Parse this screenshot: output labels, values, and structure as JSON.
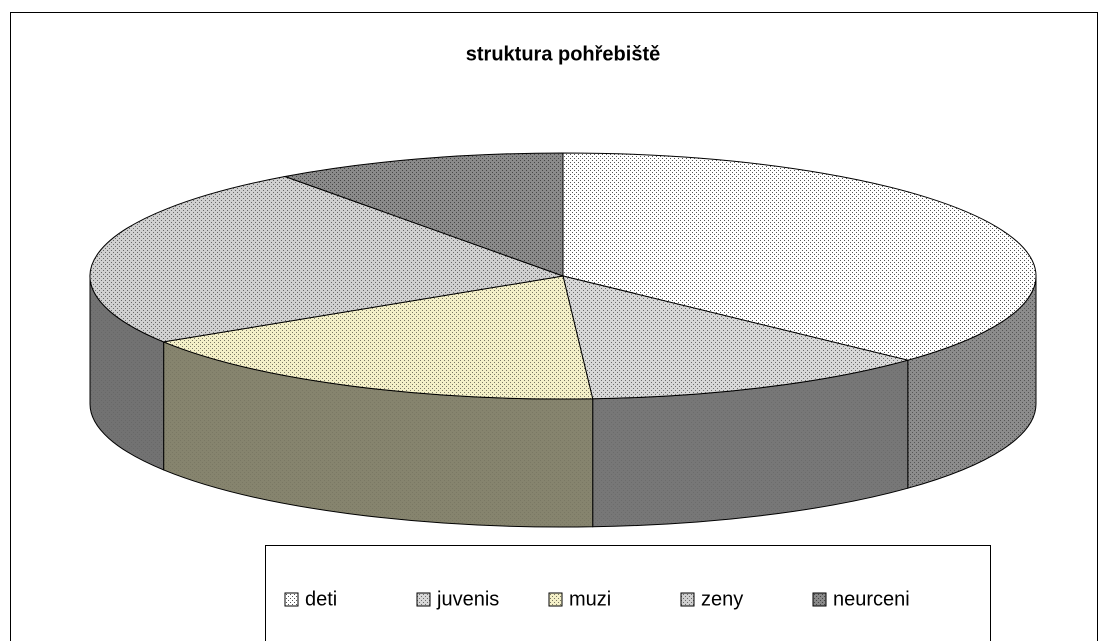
{
  "chart_data": {
    "type": "pie3d",
    "title": "struktura pohřebiště",
    "categories": [
      "deti",
      "juvenis",
      "muzi",
      "zeny",
      "neurceni"
    ],
    "values": [
      37,
      12,
      17,
      24,
      10
    ],
    "colors": [
      "#ffffff",
      "#d8d8d8",
      "#f4f0c8",
      "#d0d0d0",
      "#8a8a8a"
    ],
    "legend": "bottom"
  }
}
